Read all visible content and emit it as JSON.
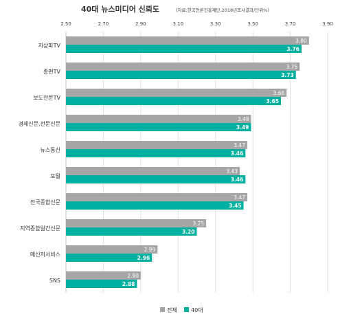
{
  "chart_data": {
    "type": "bar",
    "orientation": "horizontal",
    "title": "40대 뉴스미디어 신뢰도",
    "subtitle": "(자료:한국언론진흥재단,2018년조사결과/단위%)",
    "categories": [
      "지상파TV",
      "종편TV",
      "보도전문TV",
      "경제신문,전문신문",
      "뉴스통신",
      "포털",
      "전국종합신문",
      "지역종합일간신문",
      "메신저서비스",
      "SNS"
    ],
    "series": [
      {
        "name": "전체",
        "color": "#a6a6a6",
        "values": [
          3.8,
          3.75,
          3.68,
          3.49,
          3.47,
          3.43,
          3.47,
          3.25,
          2.99,
          2.9
        ]
      },
      {
        "name": "40대",
        "color": "#00b0a0",
        "values": [
          3.76,
          3.73,
          3.65,
          3.49,
          3.46,
          3.46,
          3.45,
          3.2,
          2.96,
          2.88
        ]
      }
    ],
    "xlim": [
      2.5,
      3.9
    ],
    "xticks": [
      "2.50",
      "2.70",
      "2.90",
      "3.10",
      "3.30",
      "3.50",
      "3.70",
      "3.90"
    ],
    "grid": true,
    "legend_position": "bottom"
  }
}
